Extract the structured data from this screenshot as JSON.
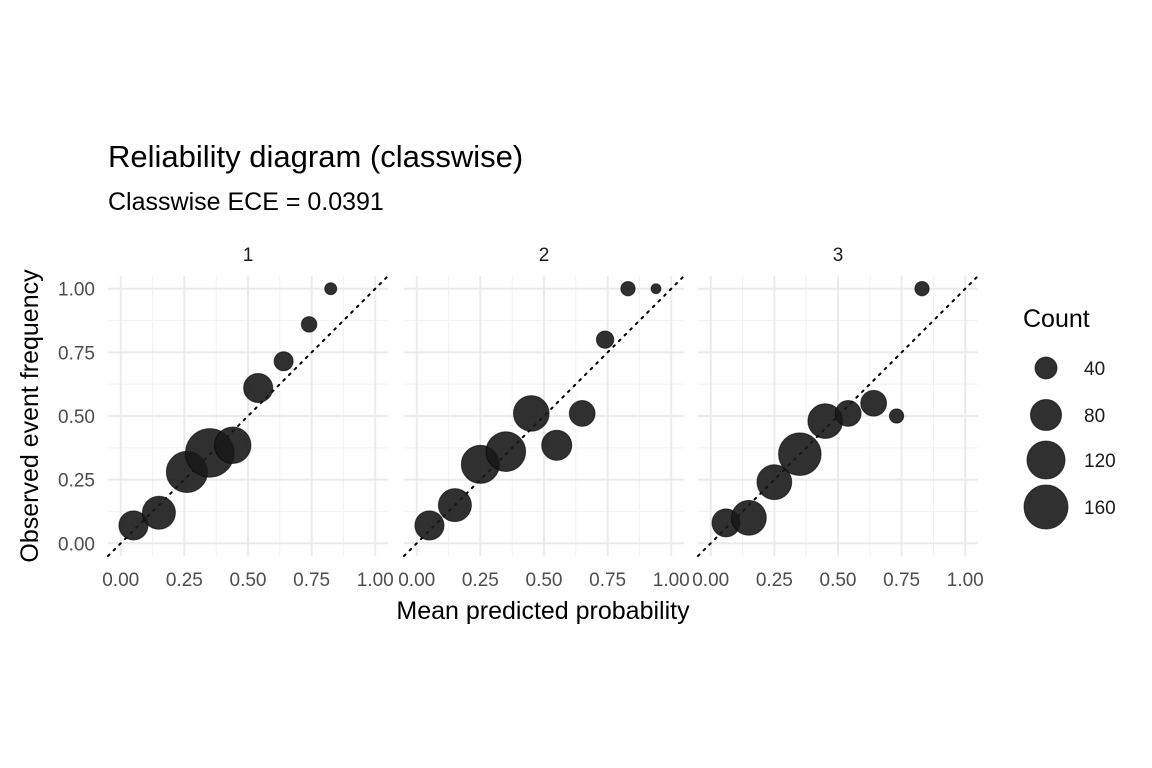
{
  "chart_data": {
    "type": "scatter",
    "title": "Reliability diagram (classwise)",
    "subtitle": "Classwise ECE = 0.0391",
    "xlabel": "Mean predicted probability",
    "ylabel": "Observed event frequency",
    "xlim": [
      -0.05,
      1.05
    ],
    "ylim": [
      -0.05,
      1.05
    ],
    "x_ticks": [
      "0.00",
      "0.25",
      "0.50",
      "0.75",
      "1.00"
    ],
    "y_ticks": [
      "0.00",
      "0.25",
      "0.50",
      "0.75",
      "1.00"
    ],
    "grid": true,
    "reference_line": "y = x (dotted)",
    "point_color": "#1a1a1a",
    "legend": {
      "title": "Count",
      "position": "right",
      "entries": [
        {
          "label": "40",
          "value": 40
        },
        {
          "label": "80",
          "value": 80
        },
        {
          "label": "120",
          "value": 120
        },
        {
          "label": "160",
          "value": 160
        }
      ]
    },
    "panels": [
      {
        "label": "1",
        "points": [
          {
            "x": 0.05,
            "y": 0.07,
            "count": 70
          },
          {
            "x": 0.15,
            "y": 0.12,
            "count": 90
          },
          {
            "x": 0.26,
            "y": 0.28,
            "count": 140
          },
          {
            "x": 0.35,
            "y": 0.355,
            "count": 195
          },
          {
            "x": 0.44,
            "y": 0.385,
            "count": 110
          },
          {
            "x": 0.54,
            "y": 0.61,
            "count": 70
          },
          {
            "x": 0.64,
            "y": 0.715,
            "count": 30
          },
          {
            "x": 0.74,
            "y": 0.86,
            "count": 20
          },
          {
            "x": 0.825,
            "y": 1.0,
            "count": 12
          }
        ]
      },
      {
        "label": "2",
        "points": [
          {
            "x": 0.05,
            "y": 0.07,
            "count": 70
          },
          {
            "x": 0.15,
            "y": 0.15,
            "count": 90
          },
          {
            "x": 0.25,
            "y": 0.31,
            "count": 120
          },
          {
            "x": 0.35,
            "y": 0.36,
            "count": 130
          },
          {
            "x": 0.45,
            "y": 0.51,
            "count": 105
          },
          {
            "x": 0.55,
            "y": 0.385,
            "count": 75
          },
          {
            "x": 0.65,
            "y": 0.51,
            "count": 55
          },
          {
            "x": 0.74,
            "y": 0.8,
            "count": 25
          },
          {
            "x": 0.83,
            "y": 1.0,
            "count": 17
          },
          {
            "x": 0.94,
            "y": 1.0,
            "count": 8
          }
        ]
      },
      {
        "label": "3",
        "points": [
          {
            "x": 0.06,
            "y": 0.08,
            "count": 65
          },
          {
            "x": 0.15,
            "y": 0.1,
            "count": 100
          },
          {
            "x": 0.25,
            "y": 0.24,
            "count": 100
          },
          {
            "x": 0.35,
            "y": 0.35,
            "count": 150
          },
          {
            "x": 0.45,
            "y": 0.48,
            "count": 100
          },
          {
            "x": 0.54,
            "y": 0.51,
            "count": 55
          },
          {
            "x": 0.64,
            "y": 0.55,
            "count": 55
          },
          {
            "x": 0.73,
            "y": 0.5,
            "count": 17
          },
          {
            "x": 0.83,
            "y": 1.0,
            "count": 17
          }
        ]
      }
    ]
  }
}
